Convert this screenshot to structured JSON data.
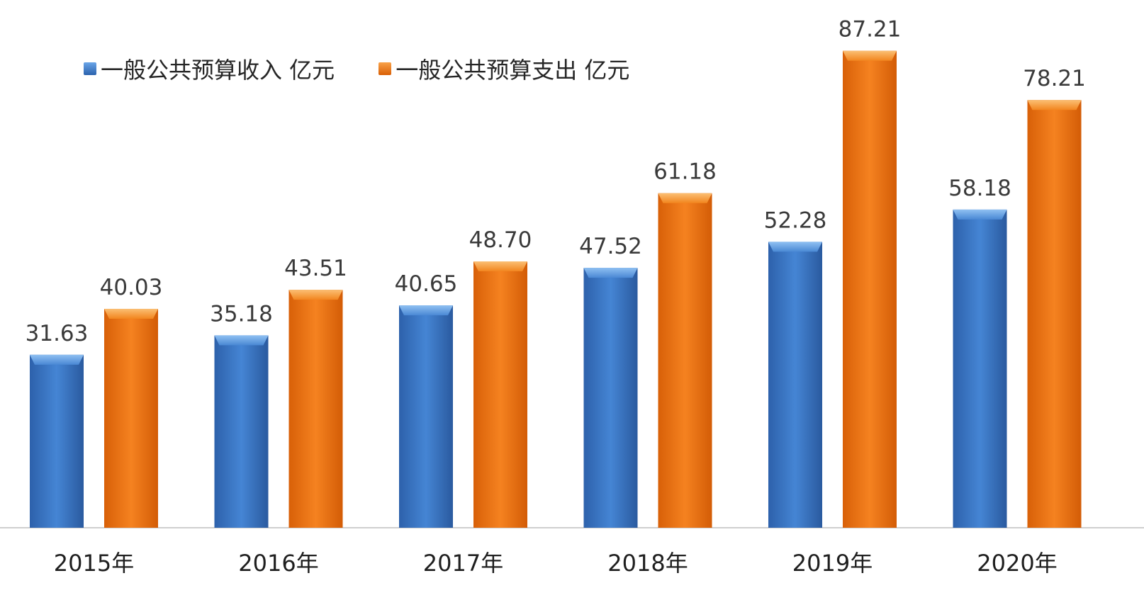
{
  "chart_data": {
    "type": "bar",
    "categories": [
      "2015年",
      "2016年",
      "2017年",
      "2018年",
      "2019年",
      "2020年"
    ],
    "series": [
      {
        "name": "一般公共预算收入 亿元",
        "values": [
          31.63,
          35.18,
          40.65,
          47.52,
          52.28,
          58.18
        ],
        "data_labels": [
          "31.63",
          "35.18",
          "40.65",
          "47.52",
          "52.28",
          "58.18"
        ],
        "color": "#3b78c8"
      },
      {
        "name": "一般公共预算支出 亿元",
        "values": [
          40.03,
          43.51,
          48.7,
          61.18,
          87.21,
          78.21
        ],
        "data_labels": [
          "40.03",
          "43.51",
          "48.70",
          "61.18",
          "87.21",
          "78.21"
        ],
        "color": "#ee7512"
      }
    ],
    "title": "",
    "xlabel": "",
    "ylabel": "",
    "ylim": [
      0,
      100
    ],
    "grid": false,
    "legend_position": "top-left"
  }
}
